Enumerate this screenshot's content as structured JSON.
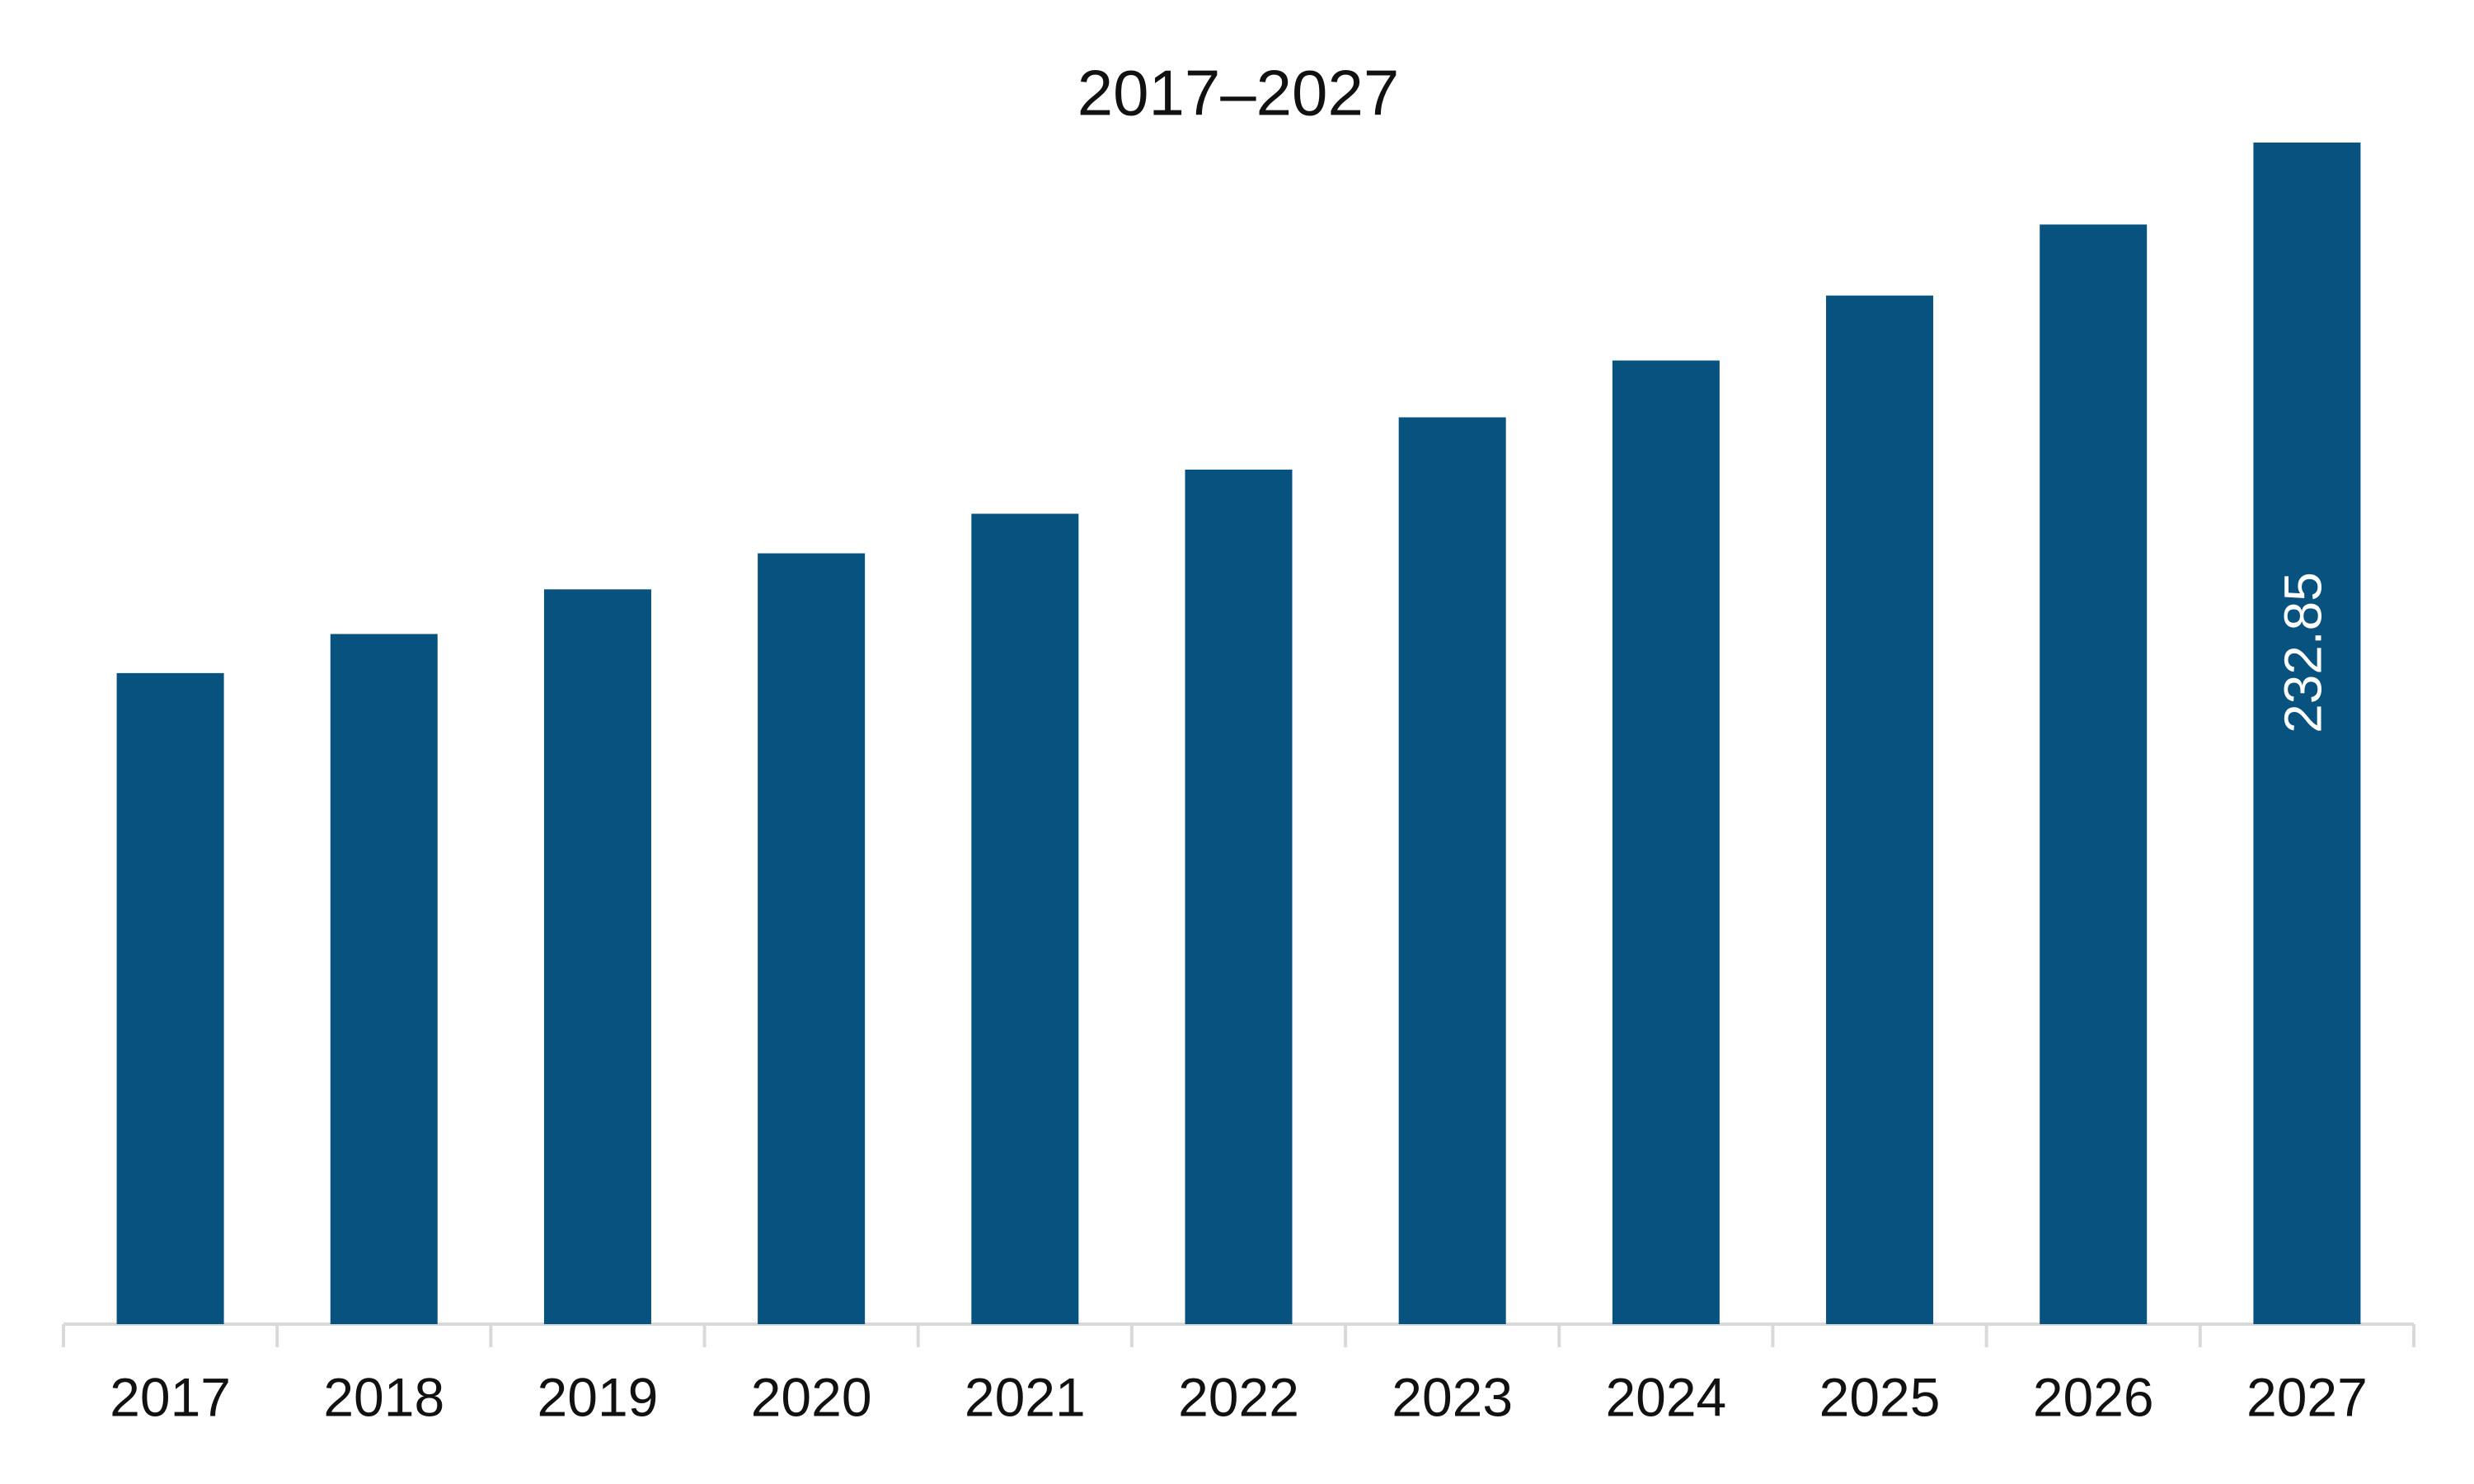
{
  "chart_data": {
    "type": "bar",
    "title": "2017–2027",
    "categories": [
      "2017",
      "2018",
      "2019",
      "2020",
      "2021",
      "2022",
      "2023",
      "2024",
      "2025",
      "2026",
      "2027"
    ],
    "values": [
      128.3,
      136.0,
      144.8,
      151.9,
      159.7,
      168.4,
      178.7,
      189.9,
      202.7,
      216.7,
      232.85
    ],
    "value_labels": [
      null,
      null,
      null,
      null,
      null,
      null,
      null,
      null,
      null,
      null,
      "232.85"
    ],
    "color": "#08527f"
  }
}
